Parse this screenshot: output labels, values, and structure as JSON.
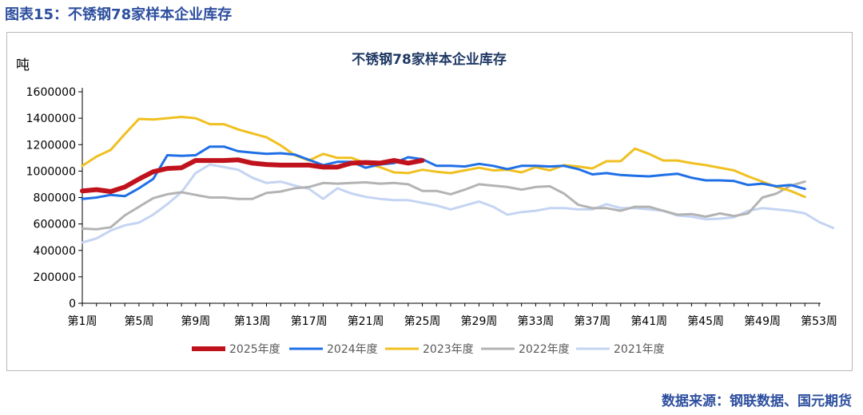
{
  "figure_title": "图表15：不锈钢78家样本企业库存",
  "source_note": "数据来源：钢联数据、国元期货",
  "chart_data": {
    "type": "line",
    "title": "不锈钢78家样本企业库存",
    "ylabel": "吨",
    "xlabel": "",
    "ylim": [
      0,
      1600000
    ],
    "yticks": [
      0,
      200000,
      400000,
      600000,
      800000,
      1000000,
      1200000,
      1400000,
      1600000
    ],
    "ytick_labels": [
      "0",
      "200000",
      "400000",
      "600000",
      "800000",
      "1000000",
      "1200000",
      "1400000",
      "1600000"
    ],
    "x_start": 1,
    "x_end": 53,
    "xticks": [
      1,
      5,
      9,
      13,
      17,
      21,
      25,
      29,
      33,
      37,
      41,
      45,
      49,
      53
    ],
    "xtick_labels": [
      "第1周",
      "第5周",
      "第9周",
      "第13周",
      "第17周",
      "第21周",
      "第25周",
      "第29周",
      "第33周",
      "第37周",
      "第41周",
      "第45周",
      "第49周",
      "第53周"
    ],
    "grid": false,
    "legend_position": "bottom",
    "series": [
      {
        "name": "2025年度",
        "color": "#c0121c",
        "width": 6,
        "start_week": 1,
        "values": [
          850000,
          860000,
          845000,
          880000,
          940000,
          995000,
          1020000,
          1025000,
          1080000,
          1080000,
          1080000,
          1085000,
          1060000,
          1050000,
          1045000,
          1045000,
          1045000,
          1030000,
          1030000,
          1060000,
          1065000,
          1060000,
          1080000,
          1060000,
          1080000
        ]
      },
      {
        "name": "2024年度",
        "color": "#1f6fe6",
        "width": 3,
        "start_week": 1,
        "values": [
          790000,
          800000,
          820000,
          810000,
          870000,
          940000,
          1120000,
          1115000,
          1120000,
          1185000,
          1185000,
          1150000,
          1140000,
          1130000,
          1135000,
          1125000,
          1085000,
          1045000,
          1070000,
          1070000,
          1025000,
          1050000,
          1060000,
          1105000,
          1090000,
          1040000,
          1040000,
          1035000,
          1055000,
          1040000,
          1015000,
          1040000,
          1040000,
          1035000,
          1040000,
          1015000,
          975000,
          985000,
          970000,
          965000,
          960000,
          970000,
          980000,
          950000,
          930000,
          930000,
          925000,
          895000,
          905000,
          885000,
          895000,
          865000
        ]
      },
      {
        "name": "2023年度",
        "color": "#f0c020",
        "width": 3,
        "start_week": 1,
        "values": [
          1040000,
          1110000,
          1160000,
          1280000,
          1395000,
          1390000,
          1400000,
          1410000,
          1400000,
          1355000,
          1355000,
          1315000,
          1285000,
          1255000,
          1195000,
          1120000,
          1080000,
          1130000,
          1100000,
          1100000,
          1060000,
          1030000,
          990000,
          985000,
          1010000,
          995000,
          985000,
          1005000,
          1025000,
          1005000,
          1010000,
          990000,
          1030000,
          1005000,
          1045000,
          1035000,
          1020000,
          1075000,
          1075000,
          1170000,
          1130000,
          1080000,
          1080000,
          1060000,
          1045000,
          1025000,
          1005000,
          960000,
          920000,
          880000,
          850000,
          805000
        ]
      },
      {
        "name": "2022年度",
        "color": "#b3b3b3",
        "width": 3,
        "start_week": 1,
        "values": [
          565000,
          560000,
          575000,
          665000,
          730000,
          795000,
          825000,
          840000,
          820000,
          800000,
          800000,
          790000,
          790000,
          835000,
          845000,
          870000,
          880000,
          910000,
          905000,
          910000,
          915000,
          905000,
          910000,
          900000,
          850000,
          850000,
          825000,
          860000,
          900000,
          890000,
          880000,
          860000,
          880000,
          885000,
          830000,
          745000,
          720000,
          720000,
          700000,
          730000,
          730000,
          700000,
          670000,
          675000,
          655000,
          680000,
          660000,
          680000,
          800000,
          830000,
          890000,
          920000
        ]
      },
      {
        "name": "2021年度",
        "color": "#c4d4f2",
        "width": 3,
        "start_week": 1,
        "values": [
          460000,
          490000,
          550000,
          590000,
          610000,
          670000,
          750000,
          840000,
          985000,
          1050000,
          1030000,
          1010000,
          950000,
          910000,
          920000,
          890000,
          865000,
          790000,
          870000,
          830000,
          805000,
          790000,
          780000,
          780000,
          760000,
          740000,
          710000,
          740000,
          770000,
          730000,
          670000,
          690000,
          700000,
          720000,
          720000,
          710000,
          710000,
          750000,
          720000,
          720000,
          710000,
          700000,
          665000,
          655000,
          635000,
          640000,
          650000,
          700000,
          720000,
          710000,
          700000,
          680000,
          615000,
          570000
        ]
      }
    ]
  }
}
